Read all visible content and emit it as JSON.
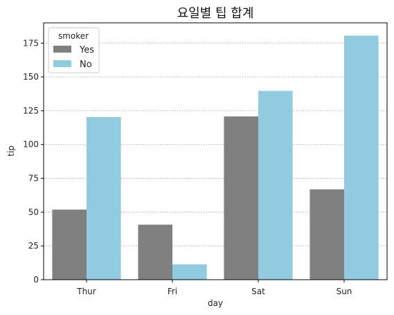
{
  "chart_data": {
    "type": "bar",
    "title": "요일별 팁 합계",
    "xlabel": "day",
    "ylabel": "tip",
    "categories": [
      "Thur",
      "Fri",
      "Sat",
      "Sun"
    ],
    "series": [
      {
        "name": "Yes",
        "values": [
          51.85,
          40.71,
          120.77,
          66.82
        ],
        "color": "#808080"
      },
      {
        "name": "No",
        "values": [
          120.32,
          11.35,
          139.63,
          180.57
        ],
        "color": "#92cbe0"
      }
    ],
    "ylim": [
      0,
      190
    ],
    "yticks": [
      0,
      25,
      50,
      75,
      100,
      125,
      150,
      175
    ],
    "grid": "y-dotted",
    "legend": {
      "title": "smoker",
      "placement": "top-left"
    }
  }
}
